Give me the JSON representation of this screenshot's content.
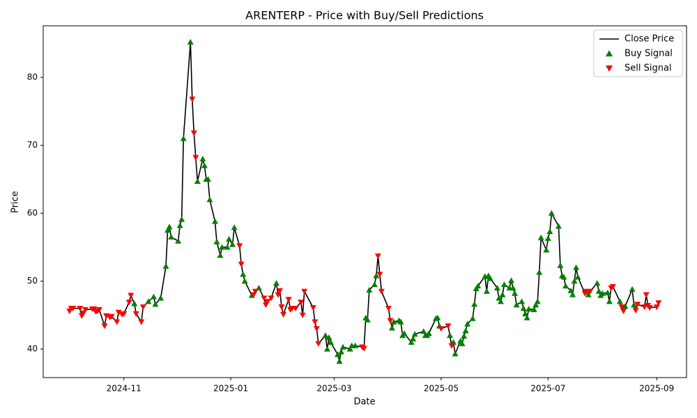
{
  "chart_data": {
    "type": "line",
    "title": "ARENTERP - Price with Buy/Sell Predictions",
    "x_label": "Date",
    "y_label": "Price",
    "legend": "upper right",
    "x": [
      "2024-10-01",
      "2024-10-02",
      "2024-10-03",
      "2024-10-07",
      "2024-10-08",
      "2024-10-09",
      "2024-10-10",
      "2024-10-14",
      "2024-10-15",
      "2024-10-16",
      "2024-10-17",
      "2024-10-18",
      "2024-10-21",
      "2024-10-22",
      "2024-10-24",
      "2024-10-25",
      "2024-10-28",
      "2024-10-29",
      "2024-10-31",
      "2024-11-01",
      "2024-11-04",
      "2024-11-05",
      "2024-11-07",
      "2024-11-08",
      "2024-11-11",
      "2024-11-12",
      "2024-11-15",
      "2024-11-18",
      "2024-11-19",
      "2024-11-22",
      "2024-11-25",
      "2024-11-26",
      "2024-11-27",
      "2024-11-28",
      "2024-12-02",
      "2024-12-03",
      "2024-12-04",
      "2024-12-05",
      "2024-12-09",
      "2024-12-10",
      "2024-12-11",
      "2024-12-12",
      "2024-12-13",
      "2024-12-16",
      "2024-12-17",
      "2024-12-18",
      "2024-12-19",
      "2024-12-20",
      "2024-12-23",
      "2024-12-24",
      "2024-12-26",
      "2024-12-27",
      "2024-12-30",
      "2024-12-31",
      "2025-01-02",
      "2025-01-03",
      "2025-01-06",
      "2025-01-07",
      "2025-01-08",
      "2025-01-09",
      "2025-01-13",
      "2025-01-14",
      "2025-01-15",
      "2025-01-17",
      "2025-01-20",
      "2025-01-21",
      "2025-01-22",
      "2025-01-24",
      "2025-01-27",
      "2025-01-28",
      "2025-01-29",
      "2025-01-30",
      "2025-01-31",
      "2025-02-03",
      "2025-02-04",
      "2025-02-05",
      "2025-02-07",
      "2025-02-10",
      "2025-02-11",
      "2025-02-12",
      "2025-02-17",
      "2025-02-18",
      "2025-02-19",
      "2025-02-20",
      "2025-02-24",
      "2025-02-25",
      "2025-02-26",
      "2025-02-27",
      "2025-03-03",
      "2025-03-04",
      "2025-03-05",
      "2025-03-06",
      "2025-03-10",
      "2025-03-11",
      "2025-03-13",
      "2025-03-17",
      "2025-03-18",
      "2025-03-19",
      "2025-03-20",
      "2025-03-21",
      "2025-03-24",
      "2025-03-25",
      "2025-03-26",
      "2025-03-27",
      "2025-03-28",
      "2025-04-01",
      "2025-04-02",
      "2025-04-03",
      "2025-04-04",
      "2025-04-07",
      "2025-04-08",
      "2025-04-09",
      "2025-04-10",
      "2025-04-14",
      "2025-04-15",
      "2025-04-16",
      "2025-04-21",
      "2025-04-22",
      "2025-04-23",
      "2025-04-24",
      "2025-04-28",
      "2025-04-29",
      "2025-04-30",
      "2025-05-01",
      "2025-05-05",
      "2025-05-06",
      "2025-05-07",
      "2025-05-08",
      "2025-05-09",
      "2025-05-12",
      "2025-05-13",
      "2025-05-14",
      "2025-05-15",
      "2025-05-16",
      "2025-05-19",
      "2025-05-20",
      "2025-05-21",
      "2025-05-22",
      "2025-05-26",
      "2025-05-27",
      "2025-05-28",
      "2025-05-29",
      "2025-06-02",
      "2025-06-03",
      "2025-06-04",
      "2025-06-05",
      "2025-06-06",
      "2025-06-09",
      "2025-06-10",
      "2025-06-11",
      "2025-06-12",
      "2025-06-13",
      "2025-06-16",
      "2025-06-17",
      "2025-06-18",
      "2025-06-19",
      "2025-06-20",
      "2025-06-23",
      "2025-06-24",
      "2025-06-25",
      "2025-06-26",
      "2025-06-27",
      "2025-06-30",
      "2025-07-01",
      "2025-07-02",
      "2025-07-03",
      "2025-07-07",
      "2025-07-08",
      "2025-07-09",
      "2025-07-10",
      "2025-07-11",
      "2025-07-14",
      "2025-07-15",
      "2025-07-16",
      "2025-07-17",
      "2025-07-18",
      "2025-07-22",
      "2025-07-23",
      "2025-07-24",
      "2025-07-25",
      "2025-07-29",
      "2025-07-30",
      "2025-07-31",
      "2025-08-01",
      "2025-08-04",
      "2025-08-05",
      "2025-08-06",
      "2025-08-07",
      "2025-08-11",
      "2025-08-12",
      "2025-08-13",
      "2025-08-14",
      "2025-08-18",
      "2025-08-19",
      "2025-08-20",
      "2025-08-21",
      "2025-08-25",
      "2025-08-26",
      "2025-08-27",
      "2025-08-28",
      "2025-09-01",
      "2025-09-02"
    ],
    "series": [
      {
        "name": "Close Price",
        "kind": "line",
        "color": "#000000",
        "values": [
          45.6,
          46.0,
          46.0,
          46.0,
          44.9,
          45.3,
          45.8,
          45.9,
          45.9,
          45.5,
          45.6,
          45.8,
          43.4,
          44.9,
          44.7,
          44.8,
          44.0,
          45.4,
          45.1,
          45.2,
          46.9,
          47.9,
          46.7,
          45.2,
          44.0,
          46.2,
          47.0,
          47.7,
          46.6,
          47.5,
          52.2,
          57.5,
          58.0,
          56.5,
          55.9,
          58.2,
          59.1,
          71.0,
          85.2,
          76.8,
          71.8,
          68.2,
          64.7,
          68.0,
          67.0,
          65.0,
          65.0,
          62.0,
          58.8,
          55.8,
          53.8,
          55.0,
          55.0,
          56.2,
          55.4,
          57.9,
          55.2,
          52.5,
          51.0,
          50.0,
          47.9,
          48.0,
          48.5,
          49.0,
          47.5,
          46.5,
          47.0,
          47.5,
          49.7,
          48.0,
          48.6,
          46.2,
          45.1,
          47.3,
          45.8,
          46.0,
          46.0,
          46.9,
          45.0,
          48.5,
          46.1,
          44.0,
          43.0,
          40.8,
          42.0,
          40.0,
          41.7,
          41.0,
          39.2,
          38.2,
          39.6,
          40.3,
          40.0,
          40.5,
          40.5,
          40.3,
          40.1,
          44.6,
          44.3,
          48.7,
          49.5,
          50.8,
          53.7,
          51.0,
          48.5,
          46.0,
          44.2,
          43.1,
          44.0,
          44.2,
          44.0,
          42.0,
          42.3,
          41.0,
          41.5,
          42.2,
          42.6,
          42.0,
          42.0,
          42.3,
          44.5,
          44.6,
          43.4,
          43.0,
          43.4,
          42.0,
          40.5,
          41.0,
          39.3,
          41.2,
          40.8,
          41.9,
          42.7,
          43.7,
          44.5,
          46.6,
          48.9,
          49.3,
          50.7,
          48.5,
          50.8,
          50.4,
          49.0,
          47.5,
          47.0,
          48.0,
          49.5,
          49.0,
          50.1,
          49.0,
          48.2,
          46.5,
          47.0,
          46.0,
          45.2,
          44.6,
          45.9,
          45.8,
          46.5,
          47.0,
          51.3,
          56.4,
          54.6,
          56.3,
          57.3,
          60.0,
          58.1,
          52.3,
          50.8,
          50.6,
          49.3,
          48.6,
          48.0,
          50.0,
          52.0,
          50.6,
          48.2,
          48.5,
          48.0,
          48.5,
          49.7,
          48.5,
          47.9,
          48.2,
          48.3,
          47.0,
          49.0,
          49.2,
          47.0,
          46.2,
          45.6,
          46.3,
          48.8,
          46.5,
          45.7,
          46.6,
          46.2,
          48.0,
          46.4,
          46.1,
          46.2,
          46.8
        ]
      },
      {
        "name": "Buy Signal",
        "kind": "scatter",
        "marker": "triangle-up",
        "color": "#008000",
        "values": [
          null,
          null,
          null,
          null,
          null,
          null,
          null,
          null,
          null,
          null,
          null,
          null,
          null,
          null,
          null,
          null,
          null,
          null,
          null,
          null,
          null,
          null,
          46.7,
          null,
          null,
          null,
          47.0,
          47.7,
          46.6,
          47.5,
          52.2,
          57.5,
          58.0,
          56.5,
          55.9,
          58.2,
          59.1,
          71.0,
          85.2,
          null,
          null,
          null,
          64.7,
          68.0,
          67.0,
          65.0,
          65.0,
          62.0,
          58.8,
          55.8,
          53.8,
          55.0,
          55.0,
          56.2,
          55.4,
          57.9,
          null,
          null,
          51.0,
          50.0,
          47.9,
          null,
          null,
          49.0,
          null,
          null,
          null,
          null,
          49.7,
          null,
          null,
          null,
          null,
          null,
          null,
          null,
          null,
          null,
          null,
          null,
          null,
          null,
          null,
          null,
          42.0,
          40.0,
          41.7,
          41.0,
          39.2,
          38.2,
          39.6,
          40.3,
          40.0,
          40.5,
          40.5,
          null,
          null,
          44.6,
          44.3,
          48.7,
          49.5,
          50.8,
          null,
          null,
          null,
          null,
          null,
          43.1,
          44.0,
          44.2,
          44.0,
          42.0,
          42.3,
          41.0,
          41.5,
          42.2,
          42.6,
          42.0,
          42.0,
          42.3,
          44.5,
          44.6,
          43.4,
          null,
          null,
          42.0,
          null,
          41.0,
          39.3,
          41.2,
          40.8,
          41.9,
          42.7,
          43.7,
          44.5,
          46.6,
          48.9,
          49.3,
          50.7,
          48.5,
          50.8,
          50.4,
          49.0,
          47.5,
          47.0,
          48.0,
          49.5,
          49.0,
          50.1,
          49.0,
          48.2,
          46.5,
          47.0,
          46.0,
          45.2,
          44.6,
          45.9,
          45.8,
          46.5,
          47.0,
          51.3,
          56.4,
          54.6,
          56.3,
          57.3,
          60.0,
          58.1,
          52.3,
          50.8,
          50.6,
          49.3,
          48.6,
          48.0,
          50.0,
          52.0,
          50.6,
          null,
          null,
          48.0,
          null,
          49.7,
          48.5,
          47.9,
          48.2,
          48.3,
          47.0,
          null,
          null,
          47.0,
          null,
          null,
          46.3,
          48.8,
          46.5,
          null,
          null,
          null,
          null,
          null,
          null,
          null,
          null
        ]
      },
      {
        "name": "Sell Signal",
        "kind": "scatter",
        "marker": "triangle-down",
        "color": "#ff0000",
        "values": [
          45.6,
          46.0,
          46.0,
          46.0,
          44.9,
          45.3,
          45.8,
          45.9,
          45.9,
          45.5,
          45.6,
          45.8,
          43.4,
          44.9,
          44.7,
          44.8,
          44.0,
          45.4,
          45.1,
          45.2,
          46.9,
          47.9,
          null,
          45.2,
          44.0,
          46.2,
          null,
          null,
          null,
          null,
          null,
          null,
          null,
          null,
          null,
          null,
          null,
          null,
          null,
          76.8,
          71.8,
          68.2,
          null,
          null,
          null,
          null,
          null,
          null,
          null,
          null,
          null,
          null,
          null,
          null,
          null,
          null,
          55.2,
          52.5,
          null,
          null,
          null,
          48.0,
          48.5,
          null,
          47.5,
          46.5,
          47.0,
          47.5,
          null,
          48.0,
          48.6,
          46.2,
          45.1,
          47.3,
          45.8,
          46.0,
          46.0,
          46.9,
          45.0,
          48.5,
          46.1,
          44.0,
          43.0,
          40.8,
          null,
          null,
          null,
          null,
          null,
          null,
          null,
          null,
          null,
          null,
          null,
          40.3,
          40.1,
          null,
          null,
          null,
          null,
          null,
          53.7,
          51.0,
          48.5,
          46.0,
          44.2,
          null,
          null,
          null,
          null,
          null,
          null,
          null,
          null,
          null,
          null,
          null,
          null,
          null,
          null,
          null,
          null,
          43.0,
          43.4,
          null,
          40.5,
          null,
          null,
          null,
          null,
          null,
          null,
          null,
          null,
          null,
          null,
          null,
          null,
          null,
          null,
          null,
          null,
          null,
          null,
          null,
          null,
          null,
          null,
          null,
          null,
          null,
          null,
          null,
          null,
          null,
          null,
          null,
          null,
          null,
          null,
          null,
          null,
          null,
          null,
          null,
          null,
          null,
          null,
          null,
          null,
          null,
          null,
          null,
          null,
          null,
          48.2,
          48.5,
          null,
          48.5,
          null,
          null,
          null,
          null,
          null,
          null,
          49.0,
          49.2,
          null,
          46.2,
          45.6,
          null,
          null,
          null,
          45.7,
          46.6,
          46.2,
          48.0,
          46.4,
          46.1,
          46.2,
          46.8
        ]
      }
    ],
    "xlim": [
      "2024-09-16",
      "2025-09-18"
    ],
    "xticks": [
      {
        "value": "2024-11-01",
        "label": "2024-11"
      },
      {
        "value": "2025-01-01",
        "label": "2025-01"
      },
      {
        "value": "2025-03-01",
        "label": "2025-03"
      },
      {
        "value": "2025-05-01",
        "label": "2025-05"
      },
      {
        "value": "2025-07-01",
        "label": "2025-07"
      },
      {
        "value": "2025-09-01",
        "label": "2025-09"
      }
    ],
    "ylim": [
      35.8,
      87.6
    ],
    "yticks": [
      40,
      50,
      60,
      70,
      80
    ],
    "grid": false
  }
}
